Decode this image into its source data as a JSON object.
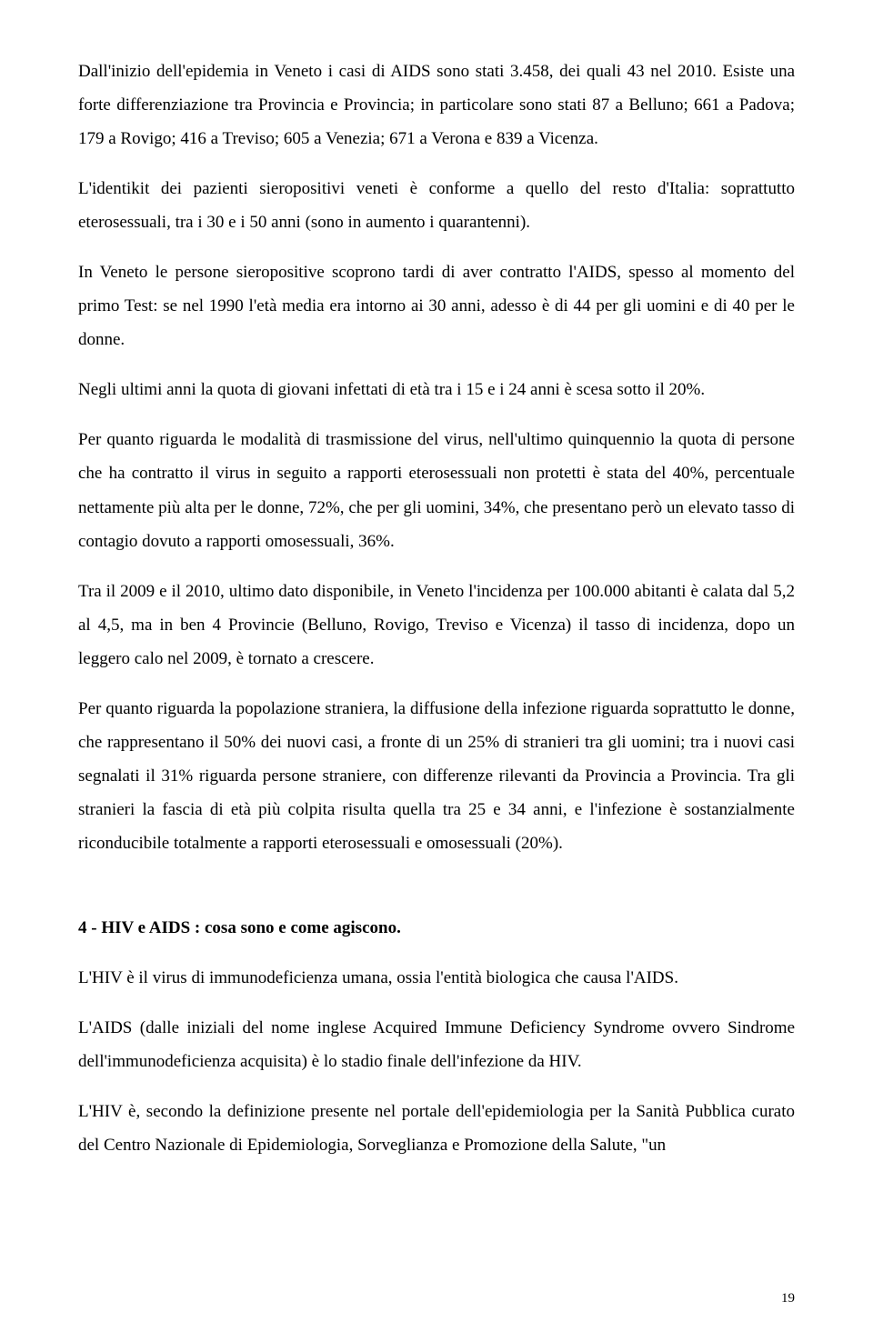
{
  "paragraphs": {
    "p1": "Dall'inizio dell'epidemia in Veneto i casi di AIDS sono stati 3.458, dei quali 43 nel 2010. Esiste una forte differenziazione tra Provincia e Provincia; in particolare sono stati 87 a Belluno; 661 a Padova; 179 a Rovigo; 416 a Treviso; 605 a Venezia; 671 a Verona e 839 a Vicenza.",
    "p2": "L'identikit dei pazienti sieropositivi veneti è conforme a quello del resto d'Italia: soprattutto eterosessuali, tra i 30 e i 50 anni (sono in aumento i quarantenni).",
    "p3": " In Veneto le persone sieropositive scoprono tardi di aver contratto l'AIDS, spesso al momento del primo Test: se nel 1990 l'età media era intorno ai 30 anni, adesso è di 44 per gli uomini e di 40 per le donne.",
    "p4": "Negli ultimi anni la quota di giovani infettati di età tra i 15 e i 24 anni è scesa sotto il 20%.",
    "p5": "Per quanto riguarda le modalità di trasmissione del virus, nell'ultimo quinquennio la quota di persone che ha contratto il virus in seguito a rapporti eterosessuali non protetti è stata del 40%, percentuale nettamente più alta per le donne, 72%, che per gli uomini, 34%, che presentano però un elevato tasso di contagio dovuto a rapporti omosessuali, 36%.",
    "p6": "Tra il 2009 e il 2010, ultimo dato disponibile, in Veneto l'incidenza per 100.000 abitanti  è calata dal 5,2 al 4,5, ma in ben 4 Provincie (Belluno, Rovigo, Treviso e Vicenza) il tasso di incidenza, dopo un leggero calo nel 2009, è tornato a crescere.",
    "p7": "Per quanto riguarda la popolazione straniera, la diffusione della infezione riguarda soprattutto le donne, che rappresentano il 50% dei nuovi casi, a fronte di un  25% di stranieri tra gli uomini; tra i nuovi casi segnalati il 31% riguarda persone straniere, con differenze rilevanti da Provincia a Provincia. Tra gli stranieri la fascia di età più colpita risulta quella tra 25 e 34 anni, e l'infezione è sostanzialmente riconducibile totalmente a rapporti eterosessuali e omosessuali (20%)."
  },
  "heading": "4 - HIV e  AIDS : cosa sono e come agiscono.",
  "section2": {
    "p8": "L'HIV  è il virus di immunodeficienza umana, ossia l'entità biologica che causa l'AIDS.",
    "p9": "L'AIDS (dalle iniziali del nome inglese Acquired Immune Deficiency Syndrome ovvero Sindrome dell'immunodeficienza acquisita) è lo stadio finale dell'infezione da HIV.",
    "p10": "L'HIV è, secondo la definizione presente nel portale dell'epidemiologia per la Sanità Pubblica curato del Centro Nazionale di Epidemiologia, Sorveglianza e Promozione della Salute,  \"un"
  },
  "pageNumber": "19",
  "style": {
    "font_family": "Times New Roman",
    "font_size_pt": 14,
    "text_color": "#000000",
    "background_color": "#ffffff",
    "text_align": "justify",
    "line_height": 1.95
  }
}
